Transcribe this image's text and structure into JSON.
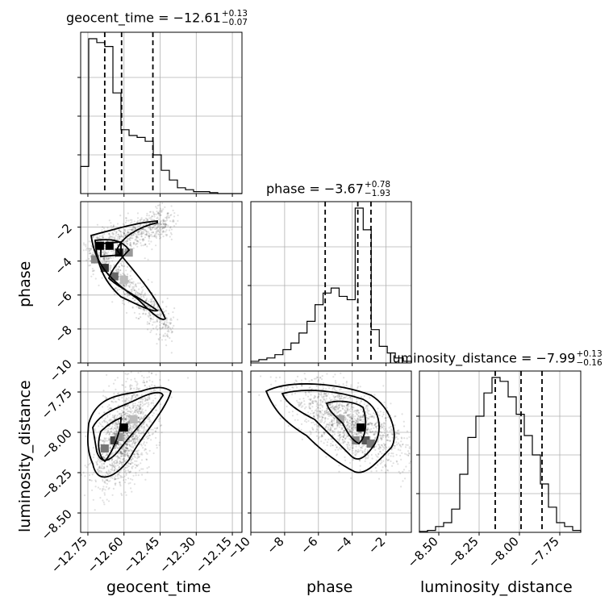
{
  "params": [
    "geocent_time",
    "phase",
    "luminosity_distance"
  ],
  "titles": [
    {
      "name": "geocent_time",
      "median": "−12.61",
      "plus": "+0.13",
      "minus": "−0.07"
    },
    {
      "name": "phase",
      "median": "−3.67",
      "plus": "+0.78",
      "minus": "−1.93"
    },
    {
      "name": "luminosity_distance",
      "median": "−7.99",
      "plus": "+0.13",
      "minus": "−0.16"
    }
  ],
  "axis_labels": {
    "x": [
      "geocent_time",
      "phase",
      "luminosity_distance"
    ],
    "y": [
      "phase",
      "luminosity_distance"
    ]
  },
  "chart_data": {
    "type": "corner",
    "parameters": [
      "geocent_time",
      "phase",
      "luminosity_distance"
    ],
    "ranges": {
      "geocent_time": [
        -12.78,
        -12.11
      ],
      "phase": [
        -10.0,
        -0.5
      ],
      "luminosity_distance": [
        -8.62,
        -7.62
      ]
    },
    "ticks": {
      "geocent_time": [
        "−12.75",
        "−12.60",
        "−12.45",
        "−12.30",
        "−12.15"
      ],
      "geocent_time_values": [
        -12.75,
        -12.6,
        -12.45,
        -12.3,
        -12.15
      ],
      "phase": [
        "−10",
        "−8",
        "−6",
        "−4",
        "−2"
      ],
      "phase_values": [
        -10,
        -8,
        -6,
        -4,
        -2
      ],
      "luminosity_distance": [
        "−8.50",
        "−8.25",
        "−8.00",
        "−7.75"
      ],
      "luminosity_distance_values": [
        -8.5,
        -8.25,
        -8.0,
        -7.75
      ]
    },
    "histograms": {
      "geocent_time": {
        "edges_start": -12.78,
        "bin_width": 0.0335,
        "counts": [
          0.14,
          0.8,
          0.78,
          0.76,
          0.52,
          0.33,
          0.3,
          0.29,
          0.27,
          0.2,
          0.12,
          0.07,
          0.03,
          0.02,
          0.01,
          0.01,
          0.005,
          0,
          0,
          0
        ],
        "quantiles": [
          -12.68,
          -12.61,
          -12.48
        ]
      },
      "phase": {
        "edges_start": -10.0,
        "bin_width": 0.475,
        "counts": [
          0.01,
          0.02,
          0.03,
          0.05,
          0.08,
          0.12,
          0.18,
          0.25,
          0.35,
          0.42,
          0.45,
          0.4,
          0.38,
          0.93,
          0.8,
          0.2,
          0.1,
          0.06,
          0.03,
          0.01
        ],
        "quantiles": [
          -5.6,
          -3.67,
          -2.89
        ]
      },
      "luminosity_distance": {
        "edges_start": -8.62,
        "bin_width": 0.05,
        "counts": [
          0.005,
          0.01,
          0.03,
          0.05,
          0.12,
          0.3,
          0.49,
          0.6,
          0.72,
          0.8,
          0.78,
          0.7,
          0.61,
          0.5,
          0.4,
          0.25,
          0.13,
          0.05,
          0.03,
          0.01
        ],
        "quantiles": [
          -8.15,
          -7.99,
          -7.86
        ]
      }
    },
    "grid": true,
    "levels": 3
  }
}
